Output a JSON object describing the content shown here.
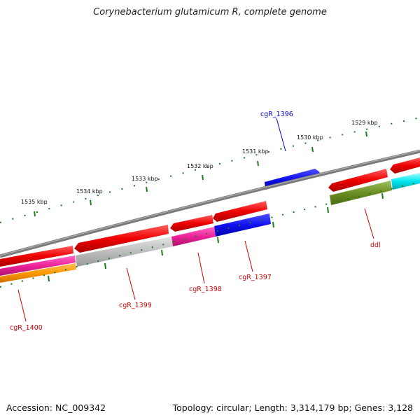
{
  "title": "Corynebacterium glutamicum R, complete genome",
  "footer": {
    "accession": "Accession: NC_009342",
    "info": "Topology: circular; Length: 3,314,179 bp; Genes: 3,128"
  },
  "scale_labels": [
    "1535 kbp",
    "1534 kbp",
    "1533 kbp",
    "1532 kbp",
    "1531 kbp",
    "1530 kbp",
    "1529 kbp"
  ],
  "gene_labels": {
    "cgR_1396": "cgR_1396",
    "ddl": "ddl",
    "cgR_1397": "cgR_1397",
    "cgR_1398": "cgR_1398",
    "cgR_1399": "cgR_1399",
    "cgR_1400": "cgR_1400"
  },
  "colors": {
    "backbone": "#808080",
    "tick": "#1e7a1e",
    "forward_label": "#0000cc",
    "reverse_label": "#cc0000",
    "red": "#ee0000",
    "blue": "#1010ee",
    "magenta": "#ee2299",
    "orange": "#ff9900",
    "gray": "#bdbdbd",
    "olive": "#6b8e23",
    "cyan": "#00e5ee"
  }
}
